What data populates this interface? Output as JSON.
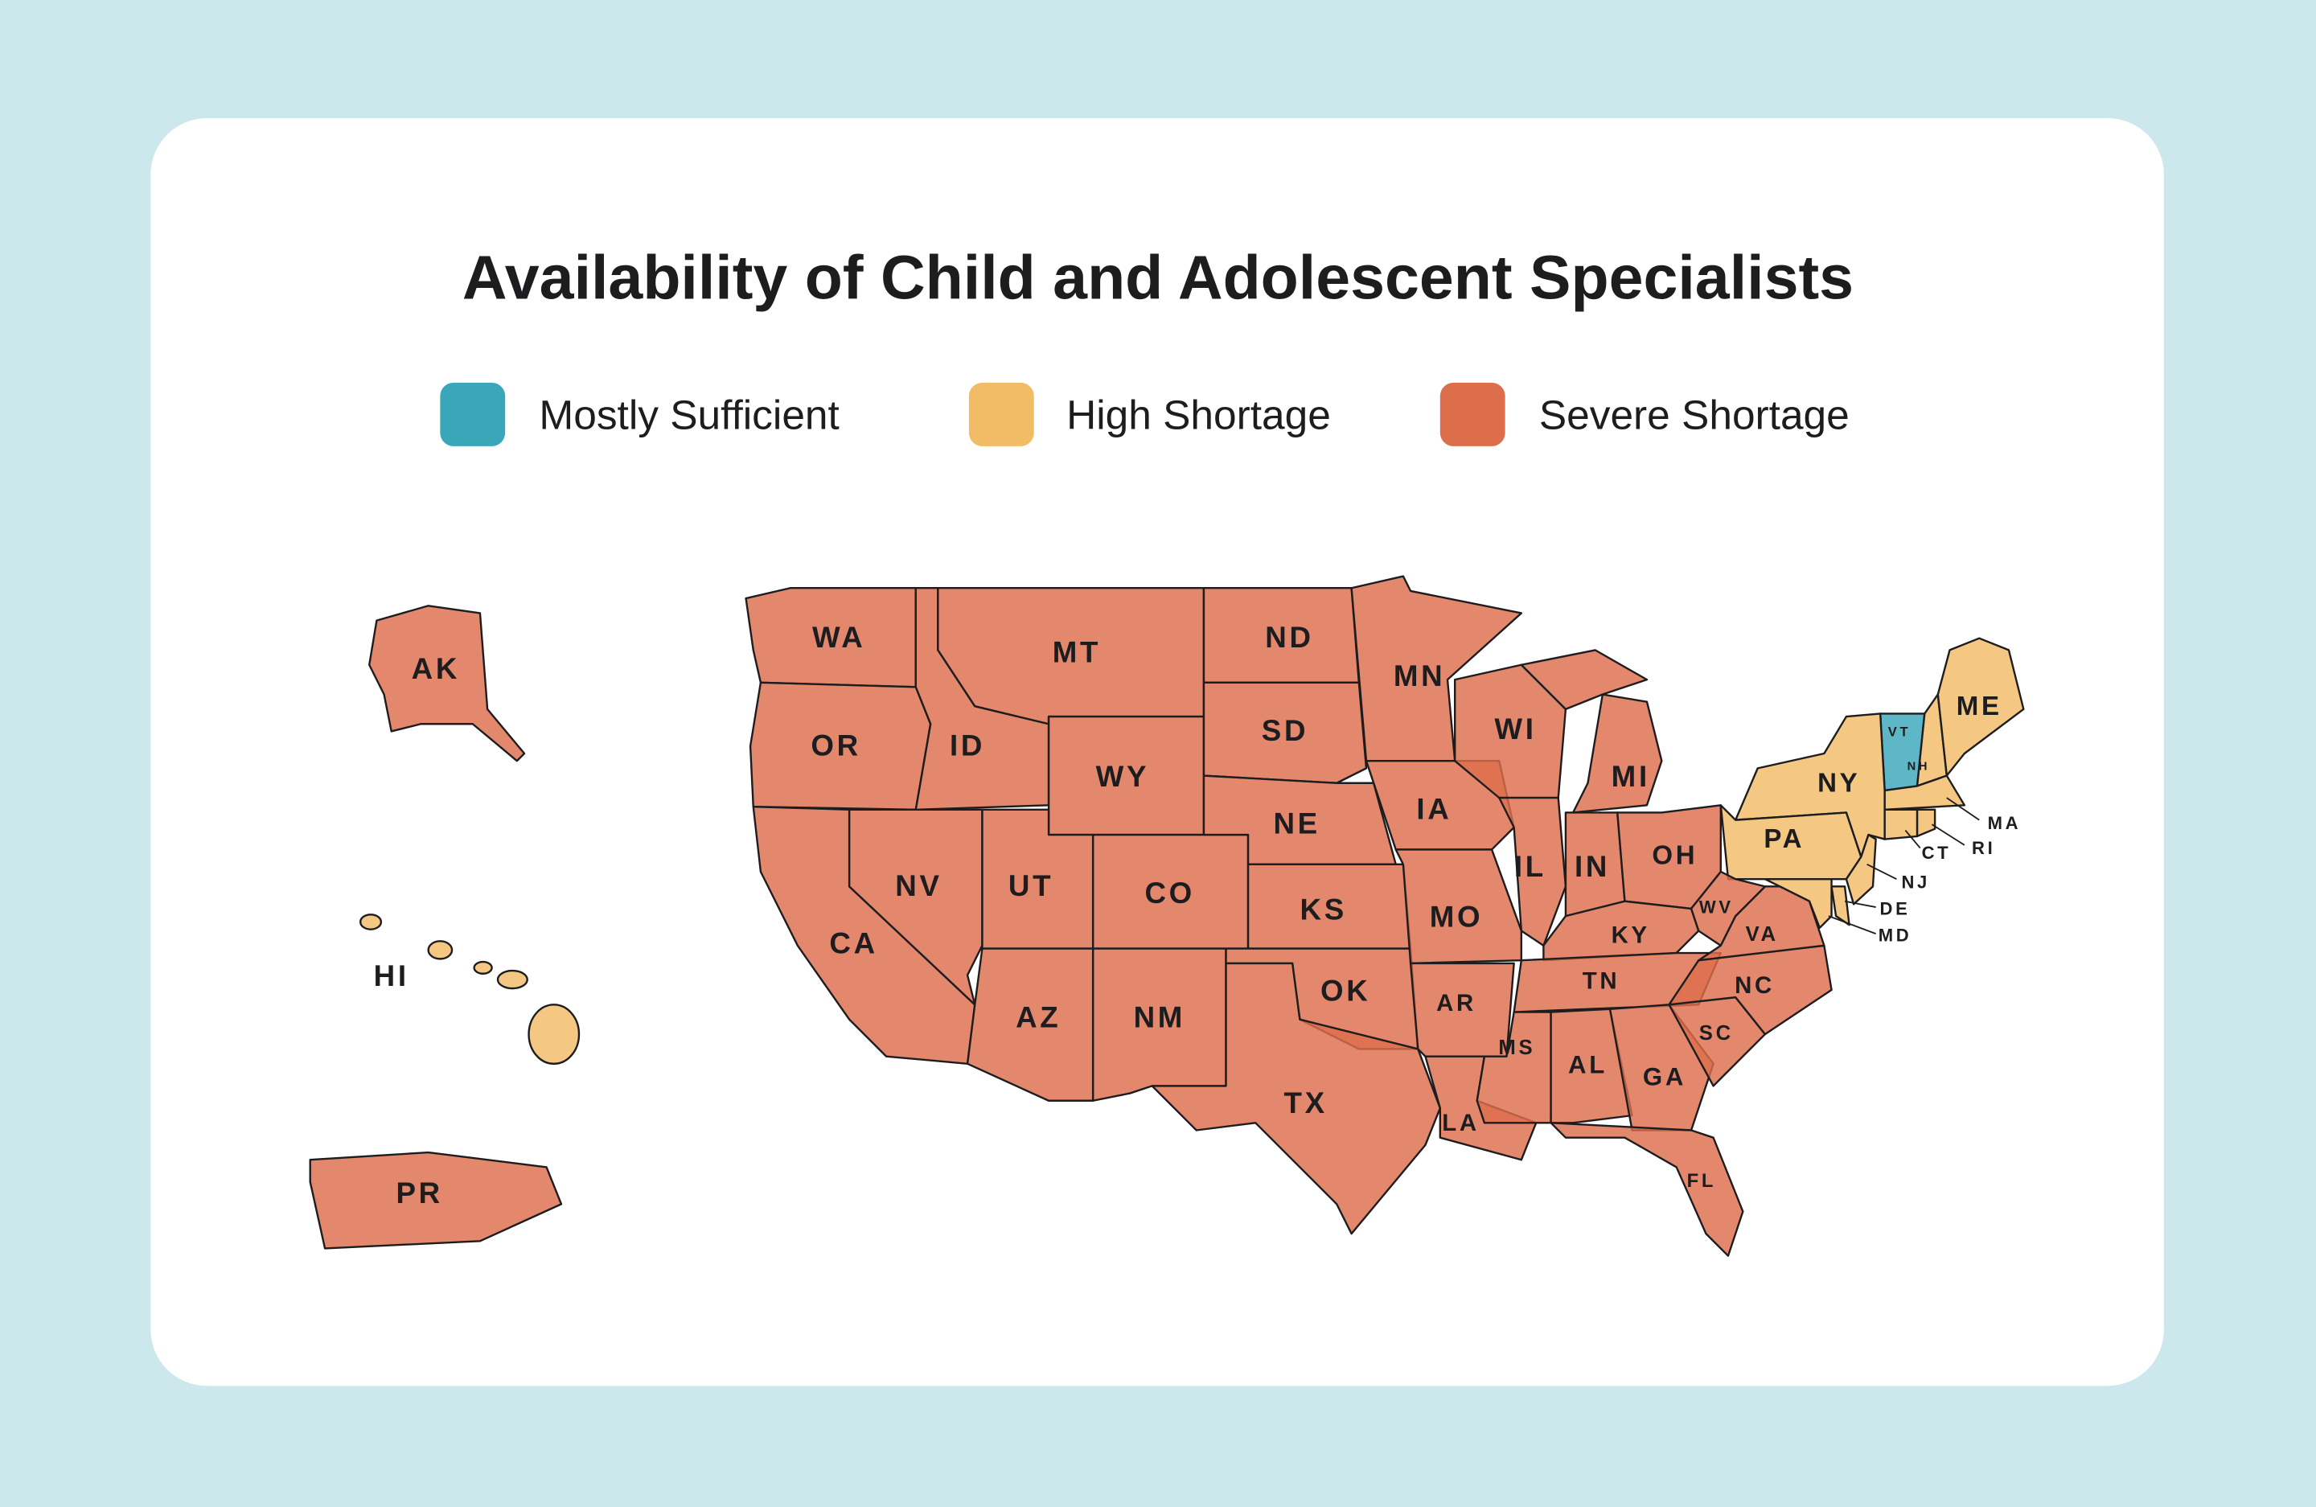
{
  "title": "Availability of Child and Adolescent Specialists",
  "legend": [
    {
      "name": "Mostly Sufficient",
      "color": "#3aa7b9",
      "states": [
        "VT"
      ]
    },
    {
      "name": "High Shortage",
      "color": "#f2bb66",
      "states": [
        "HI",
        "NY",
        "PA",
        "NH",
        "ME",
        "MA",
        "CT",
        "RI",
        "NJ",
        "DE",
        "MD"
      ]
    },
    {
      "name": "Severe Shortage",
      "color": "#dd6e4c",
      "states": [
        "WA",
        "OR",
        "CA",
        "NV",
        "ID",
        "MT",
        "WY",
        "UT",
        "CO",
        "AZ",
        "NM",
        "ND",
        "SD",
        "NE",
        "KS",
        "OK",
        "TX",
        "MN",
        "IA",
        "MO",
        "AR",
        "LA",
        "WI",
        "IL",
        "IN",
        "MI",
        "OH",
        "KY",
        "TN",
        "MS",
        "AL",
        "GA",
        "FL",
        "SC",
        "NC",
        "VA",
        "WV",
        "AK",
        "PR"
      ]
    }
  ]
}
